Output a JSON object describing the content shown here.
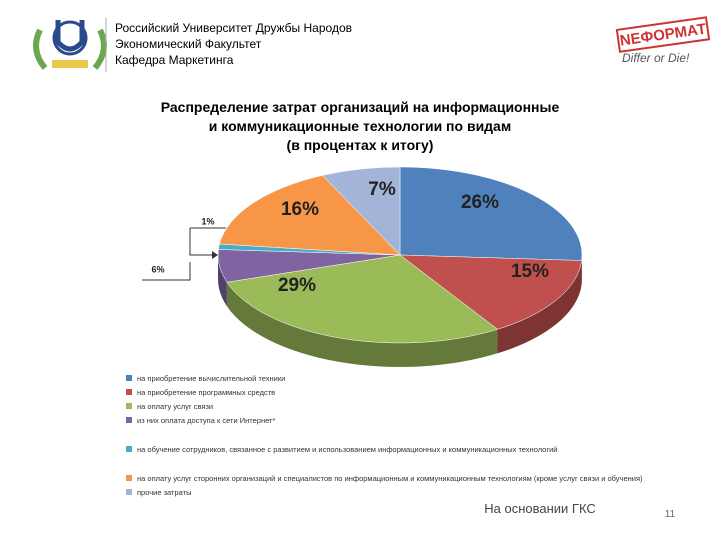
{
  "header": {
    "lines": [
      "Российский Университет Дружбы Народов",
      "Экономический Факультет",
      "Кафедра Маркетинга"
    ],
    "brand": "NEФОРМАТ",
    "slogan": "Differ or Die!"
  },
  "chart_data": {
    "type": "pie",
    "title": [
      "Распределение затрат организаций на информационные",
      "и коммуникационные технологии по видам",
      "(в процентах к итогу)"
    ],
    "categories": [
      "на приобретение вычислительной техники",
      "на приобретение программных средств",
      "на оплату услуг связи",
      "из них оплата доступа к сети Интернет*",
      "на обучение сотрудников, связанное с развитием и использованием информационных и коммуникационных технологий",
      "на оплату услуг сторонних организаций и специалистов по информационным и коммуникационным технологиям (кроме услуг связи и обучения)",
      "прочие затраты"
    ],
    "values": [
      26,
      15,
      29,
      6,
      1,
      16,
      7
    ],
    "value_labels": [
      "26%",
      "15%",
      "29%",
      "6%",
      "1%",
      "16%",
      "7%"
    ],
    "colors": [
      "#4f81bd",
      "#c0504d",
      "#9bbb59",
      "#8064a2",
      "#4bacc6",
      "#f79646",
      "#a2b4d8"
    ],
    "legend": "bottom"
  },
  "footer": {
    "note": "На основании ГКС",
    "page": "11"
  }
}
